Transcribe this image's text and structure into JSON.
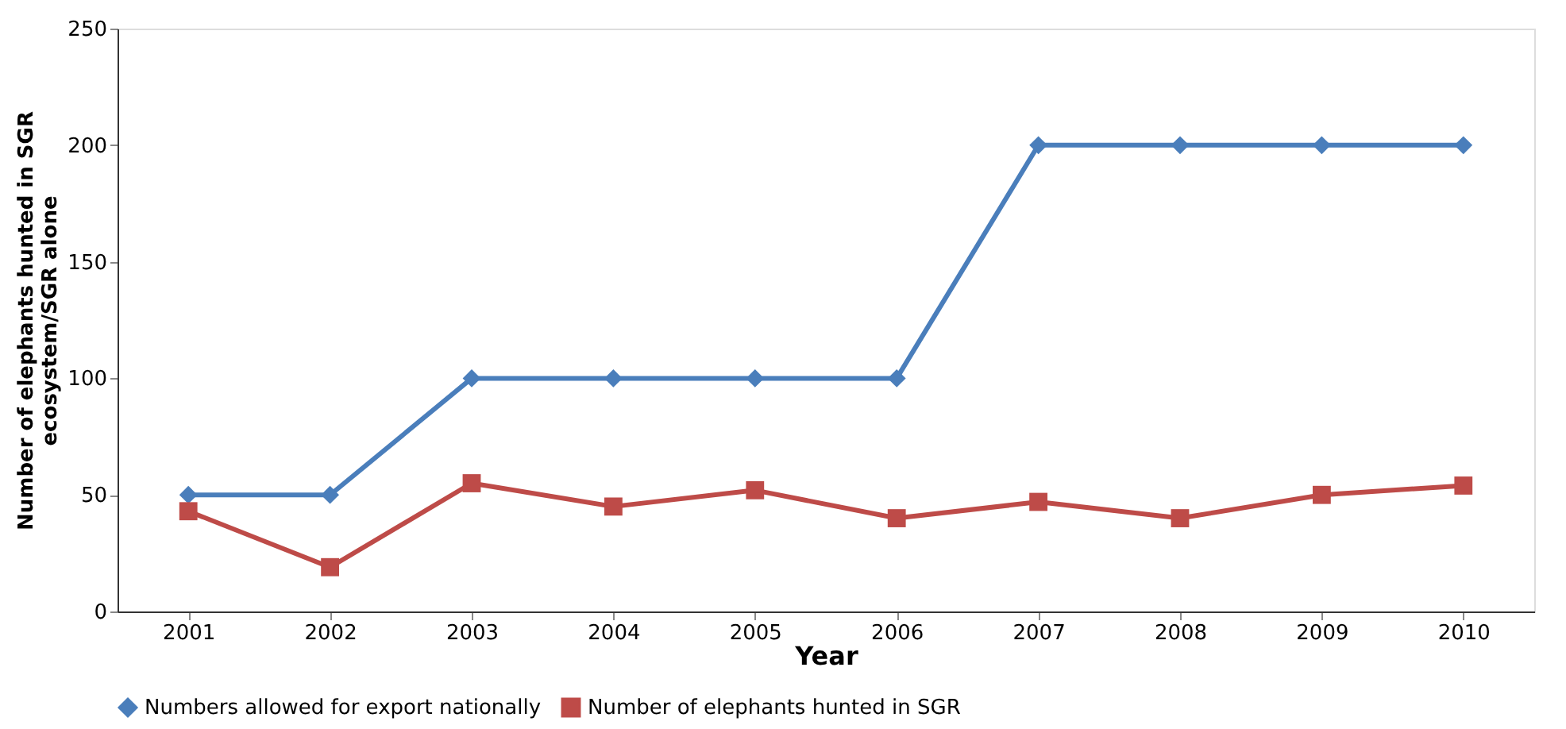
{
  "chart_data": {
    "type": "line",
    "xlabel": "Year",
    "ylabel": "Number of  elephants hunted in SGR ecosystem/SGR alone",
    "categories": [
      "2001",
      "2002",
      "2003",
      "2004",
      "2005",
      "2006",
      "2007",
      "2008",
      "2009",
      "2010"
    ],
    "series": [
      {
        "name": "Numbers allowed for export nationally",
        "color": "#4a7ebb",
        "marker": "diamond",
        "values": [
          50,
          50,
          100,
          100,
          100,
          100,
          200,
          200,
          200,
          200
        ]
      },
      {
        "name": "Number  of elephants hunted in SGR",
        "color": "#be4b48",
        "marker": "square",
        "values": [
          43,
          19,
          55,
          45,
          52,
          40,
          47,
          40,
          50,
          54
        ]
      }
    ],
    "ylim": [
      0,
      250
    ],
    "yticks": [
      0,
      50,
      100,
      150,
      200,
      250
    ],
    "grid": false,
    "legend": "bottom",
    "line_style": "solid"
  }
}
